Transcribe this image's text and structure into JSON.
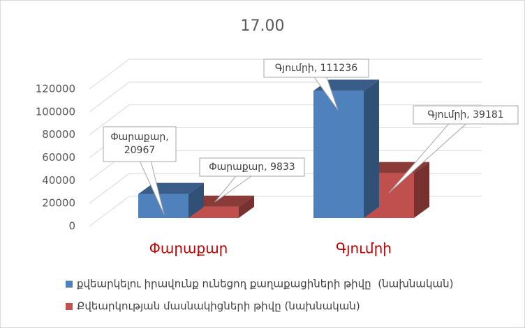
{
  "chart_data": {
    "type": "bar3d",
    "title": "17.00",
    "categories": [
      "Փարաքար",
      "Գյումրի"
    ],
    "series": [
      {
        "name": "քվեարկելու իրավունք ունեցող քաղաքացիների թիվը  (նախնական)",
        "color": "#4f81bd",
        "values": [
          20967,
          111236
        ],
        "value_labels": [
          "Փարաքար, 20967",
          "Գյումրի, 111236"
        ]
      },
      {
        "name": "Քվեարկության մասնակիցների թիվը (նախնական)",
        "color": "#c0504d",
        "values": [
          9833,
          39181
        ],
        "value_labels": [
          "Փարաքար, 9833",
          "Գյումրի, 39181"
        ]
      }
    ],
    "ylim": [
      0,
      120000
    ],
    "yticks": [
      0,
      20000,
      40000,
      60000,
      80000,
      100000,
      120000
    ],
    "grid": true,
    "category_label_color": "#c00000",
    "legend": "bottom"
  }
}
